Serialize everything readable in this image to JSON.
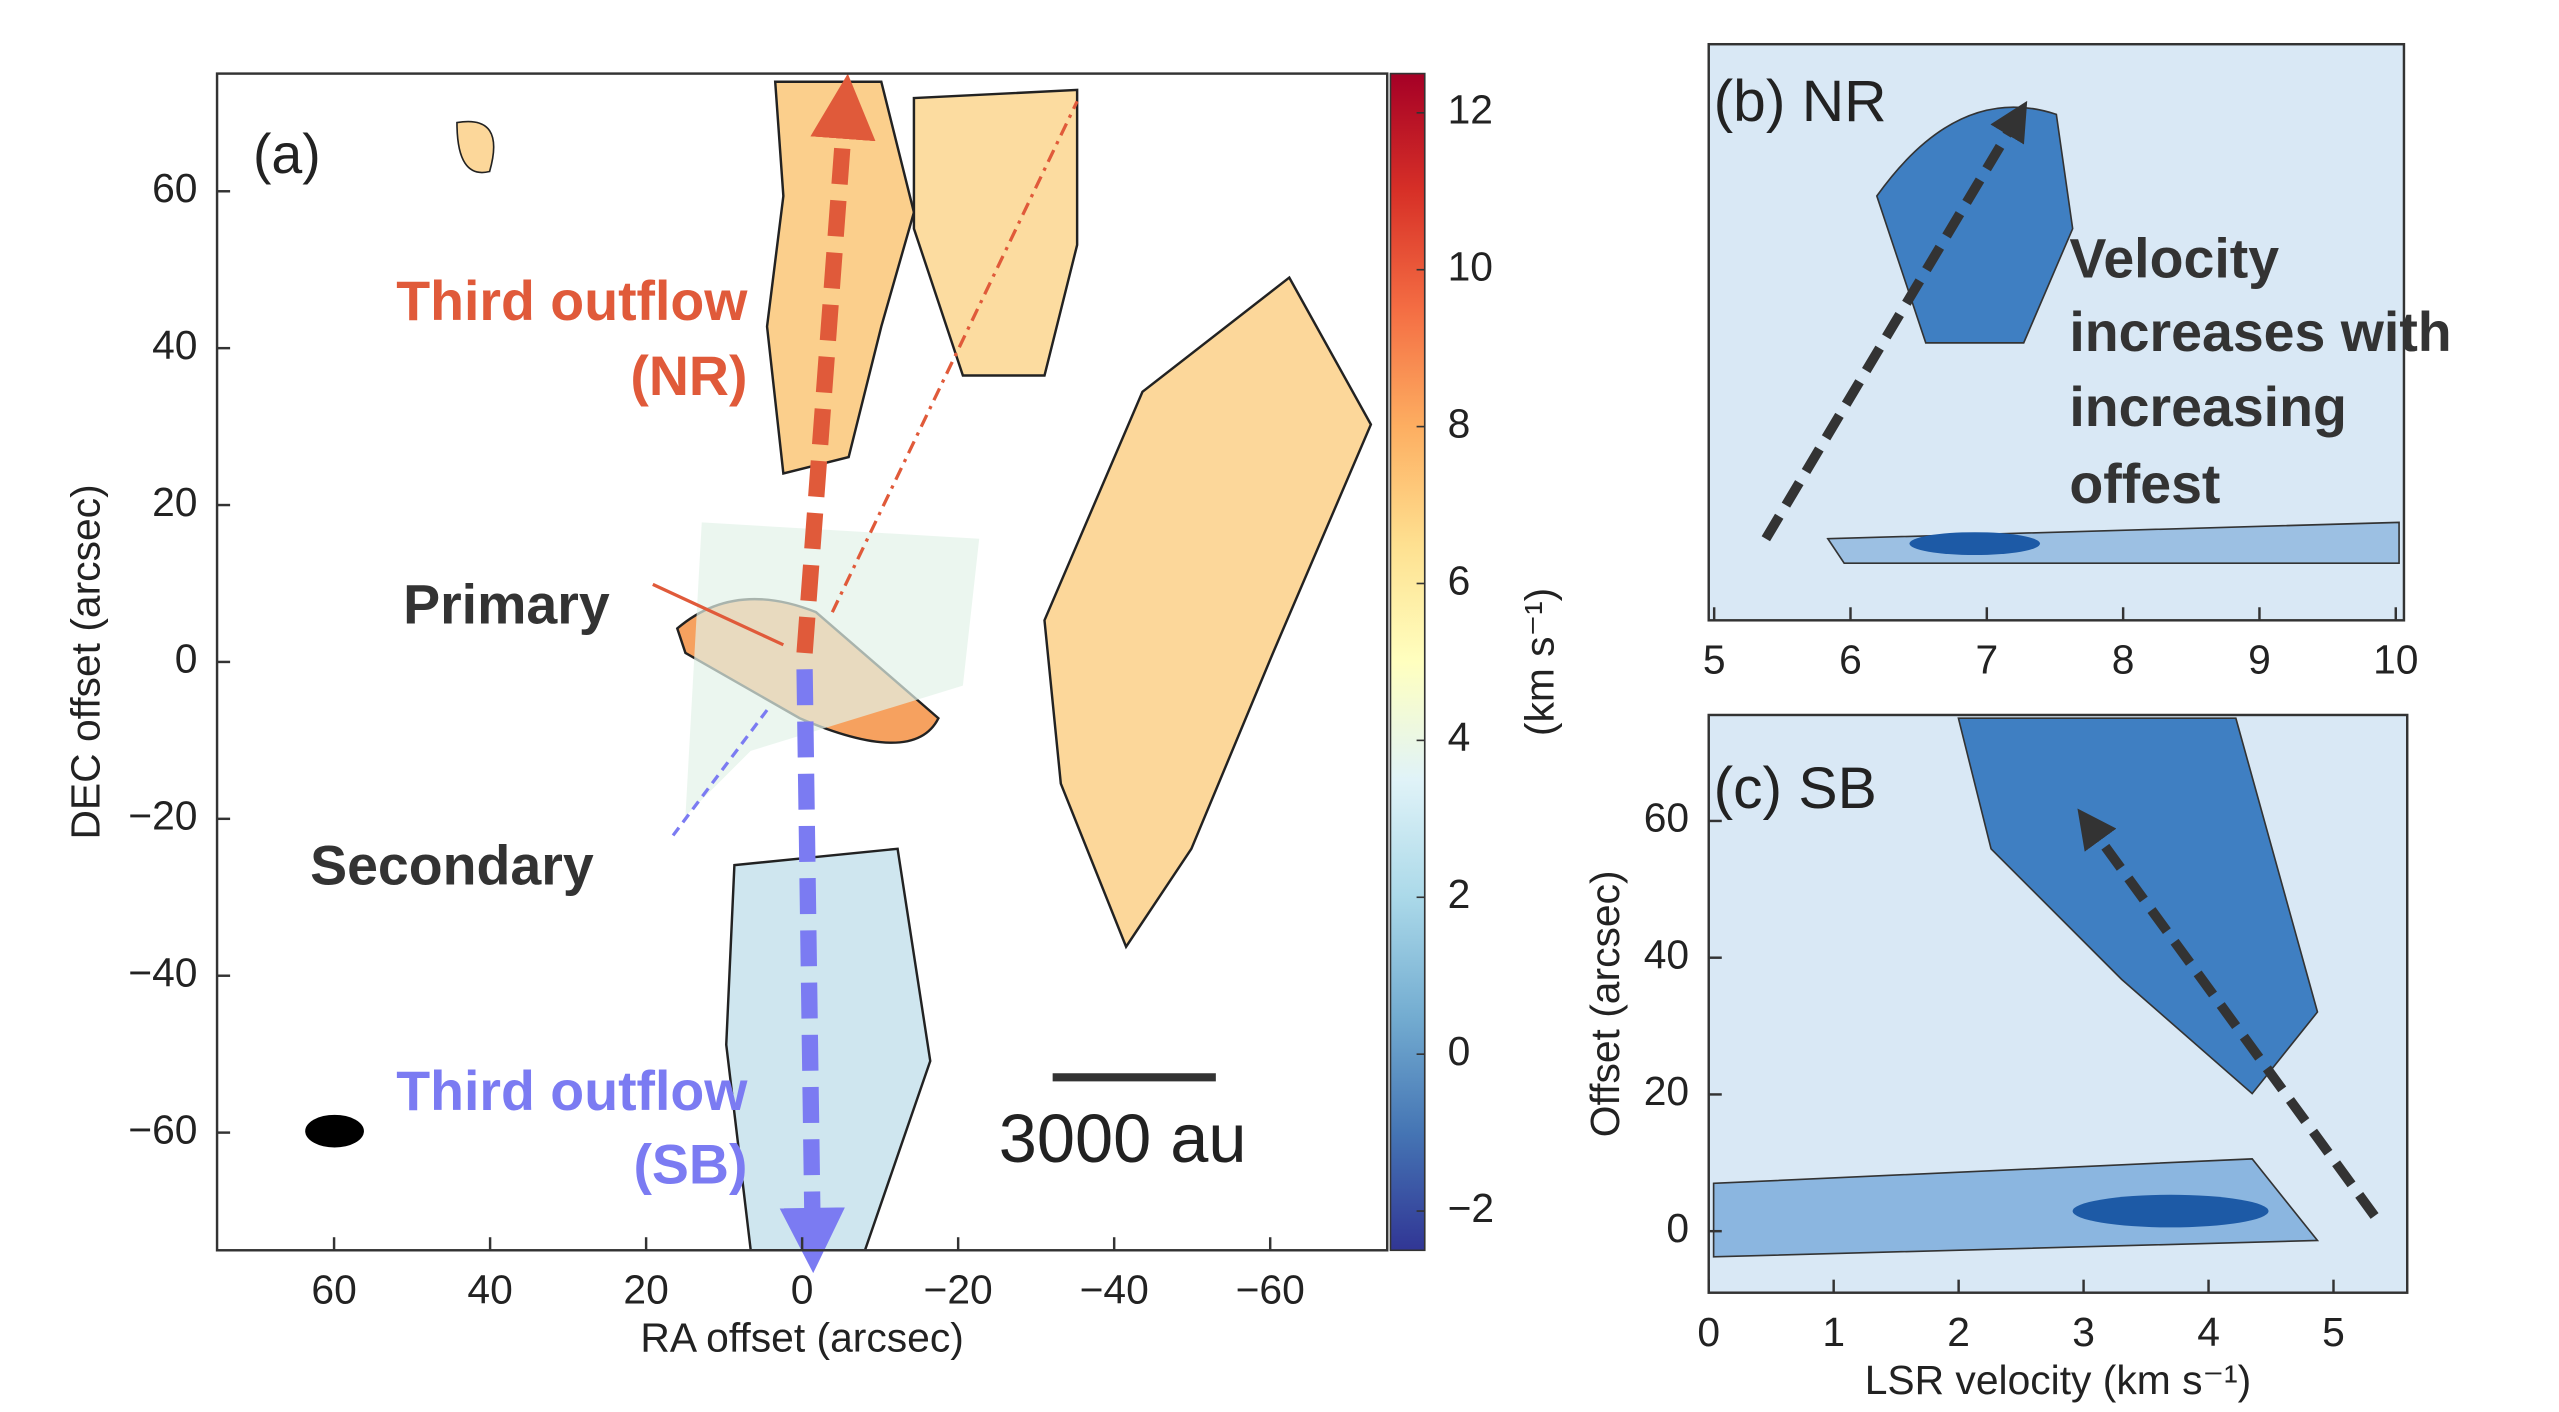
{
  "chart_data": [
    {
      "type": "map",
      "xlabel": "RA offset (arcsec)",
      "ylabel": "DEC offset (arcsec)",
      "xlim": [
        75,
        -75
      ],
      "ylim": [
        -75,
        75
      ],
      "xticks": [
        60,
        40,
        20,
        0,
        {
          "value": -20,
          "label": "−20"
        },
        {
          "value": -40,
          "label": "−40"
        },
        {
          "value": -60,
          "label": "−60"
        }
      ],
      "yticks": [
        {
          "value": -60,
          "label": "−60"
        },
        {
          "value": -40,
          "label": "−40"
        },
        {
          "value": -20,
          "label": "−20"
        },
        0,
        20,
        40,
        60
      ],
      "annotations": [
        "(a)",
        "Third outflow",
        "(NR)",
        "Primary",
        "Secondary",
        "Third outflow",
        "(SB)",
        "3000 au"
      ],
      "colorbar": {
        "label": "(km s⁻¹)",
        "lim": [
          -2.5,
          12.5
        ],
        "ticks": [
          {
            "value": -2,
            "label": "−2"
          },
          0,
          2,
          4,
          6,
          8,
          10,
          12
        ],
        "colors": [
          "#313695",
          "#4575b4",
          "#74add1",
          "#abd9e9",
          "#e0f3f8",
          "#ffffbf",
          "#fee090",
          "#fdae61",
          "#f46d43",
          "#d73027",
          "#a50026"
        ]
      }
    },
    {
      "type": "pv",
      "xlim": [
        4.96,
        10.06
      ],
      "xticks": [
        5,
        6,
        7,
        8,
        9,
        10
      ],
      "annotations": [
        "(b) NR",
        "Velocity",
        "increases with",
        "increasing",
        "offest"
      ]
    },
    {
      "type": "pv",
      "xlabel": "LSR velocity (km s⁻¹)",
      "ylabel": "Offset (arcsec)",
      "xlim": [
        0,
        5.59
      ],
      "ylim": [
        -9,
        75.5
      ],
      "xticks": [
        0,
        1,
        2,
        3,
        4,
        5
      ],
      "yticks": [
        0,
        20,
        40,
        60
      ],
      "annotations": [
        "(c) SB"
      ]
    }
  ]
}
